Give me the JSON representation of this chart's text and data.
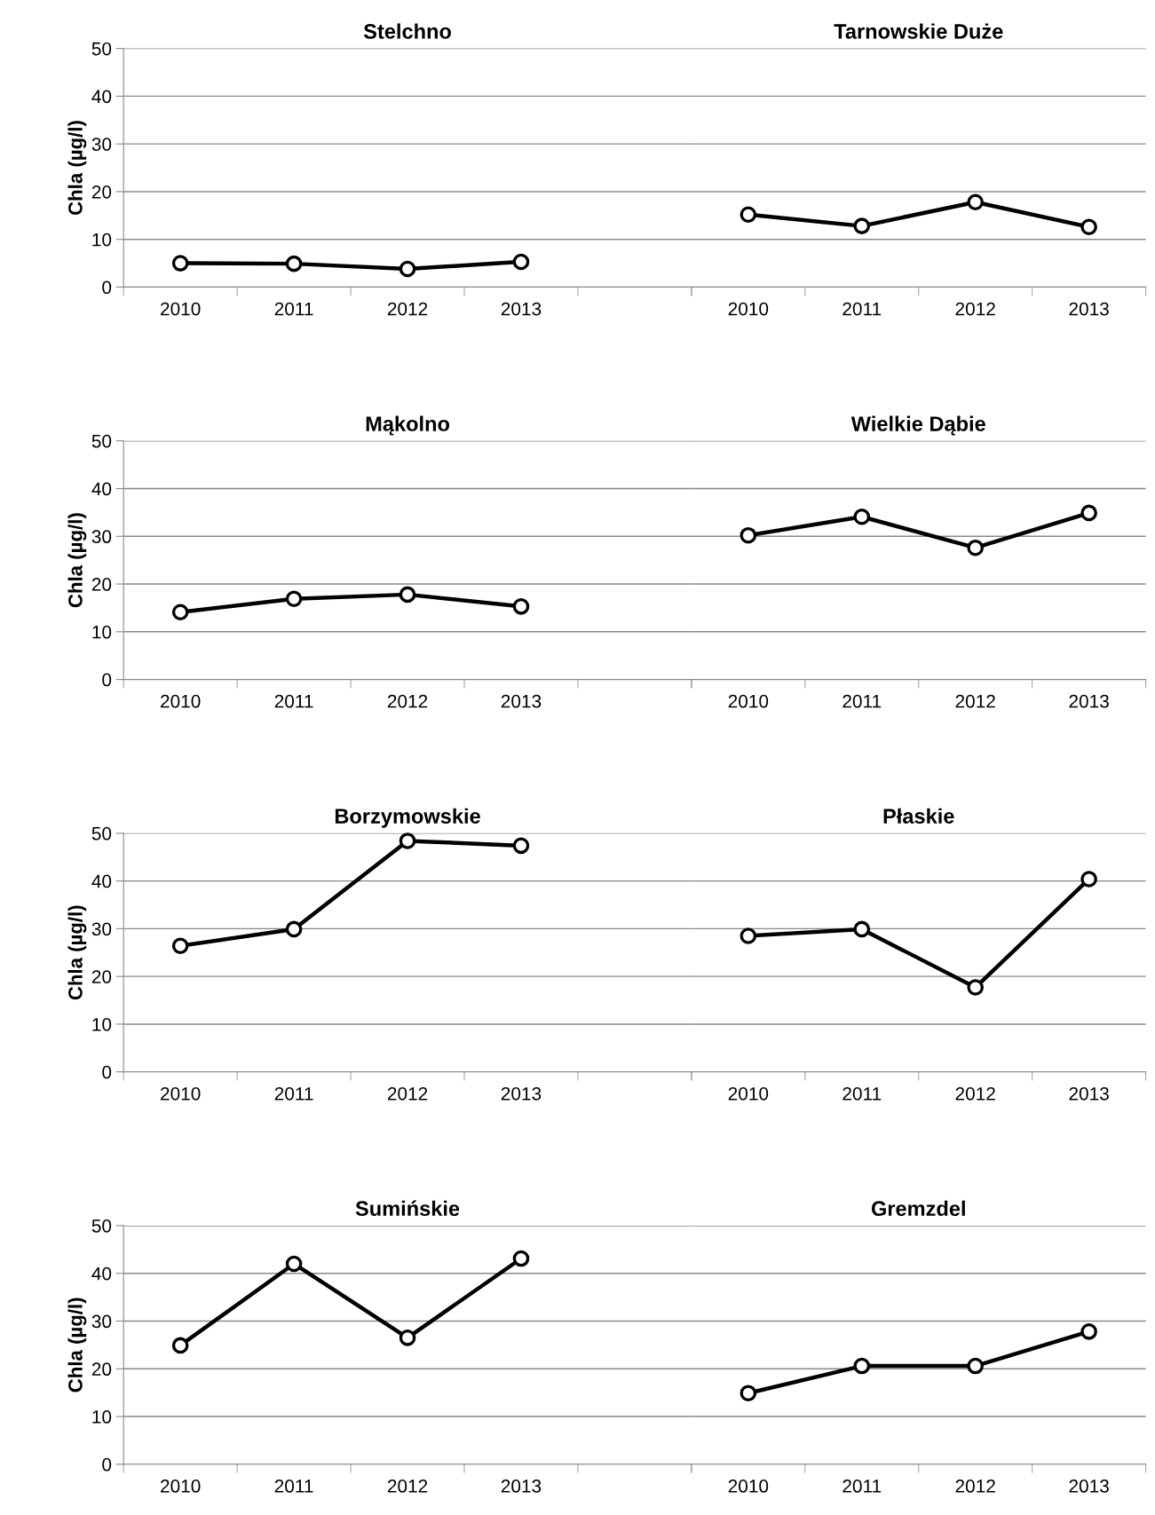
{
  "chart_data": [
    {
      "type": "line",
      "title": "Stelchno",
      "ylabel": "Chla (µg/l)",
      "categories": [
        "2010",
        "2011",
        "2012",
        "2013",
        null
      ],
      "ylim": [
        0,
        50
      ],
      "yticks": [
        0,
        10,
        20,
        30,
        40,
        50
      ],
      "grid": "y",
      "marker": "circle",
      "line_style": "solid",
      "series": [
        {
          "color": "#000000",
          "values": [
            5.0,
            4.9,
            3.8,
            5.3,
            null
          ]
        }
      ]
    },
    {
      "type": "line",
      "title": "Tarnowskie Duże",
      "categories": [
        "2010",
        "2011",
        "2012",
        "2013"
      ],
      "ylim": [
        0,
        50
      ],
      "yticks": [
        0,
        10,
        20,
        30,
        40,
        50
      ],
      "tick_labels": "x",
      "grid": "y",
      "marker": "circle",
      "line_style": "solid",
      "series": [
        {
          "color": "#000000",
          "values": [
            15.2,
            12.8,
            17.8,
            12.6
          ]
        }
      ]
    },
    {
      "type": "line",
      "title": "Mąkolno",
      "ylabel": "Chla (µg/l)",
      "categories": [
        "2010",
        "2011",
        "2012",
        "2013",
        null
      ],
      "ylim": [
        0,
        50
      ],
      "yticks": [
        0,
        10,
        20,
        30,
        40,
        50
      ],
      "grid": "y",
      "marker": "circle",
      "line_style": "solid",
      "series": [
        {
          "color": "#000000",
          "values": [
            14.1,
            16.9,
            17.8,
            15.3,
            null
          ]
        }
      ]
    },
    {
      "type": "line",
      "title": "Wielkie Dąbie",
      "categories": [
        "2010",
        "2011",
        "2012",
        "2013"
      ],
      "ylim": [
        0,
        50
      ],
      "yticks": [
        0,
        10,
        20,
        30,
        40,
        50
      ],
      "tick_labels": "x",
      "grid": "y",
      "marker": "circle",
      "line_style": "solid",
      "series": [
        {
          "color": "#000000",
          "values": [
            30.2,
            34.1,
            27.6,
            34.9
          ]
        }
      ]
    },
    {
      "type": "line",
      "title": "Borzymowskie",
      "ylabel": "Chla (µg/l)",
      "categories": [
        "2010",
        "2011",
        "2012",
        "2013",
        null
      ],
      "ylim": [
        0,
        50
      ],
      "yticks": [
        0,
        10,
        20,
        30,
        40,
        50
      ],
      "grid": "y",
      "marker": "circle",
      "line_style": "solid",
      "series": [
        {
          "color": "#000000",
          "values": [
            26.4,
            29.9,
            48.4,
            47.4,
            null
          ]
        }
      ]
    },
    {
      "type": "line",
      "title": "Płaskie",
      "categories": [
        "2010",
        "2011",
        "2012",
        "2013"
      ],
      "ylim": [
        0,
        50
      ],
      "yticks": [
        0,
        10,
        20,
        30,
        40,
        50
      ],
      "tick_labels": "x",
      "grid": "y",
      "marker": "circle",
      "line_style": "solid",
      "series": [
        {
          "color": "#000000",
          "values": [
            28.5,
            29.9,
            17.7,
            40.4
          ]
        }
      ]
    },
    {
      "type": "line",
      "title": "Sumińskie",
      "ylabel": "Chla (µg/l)",
      "categories": [
        "2010",
        "2011",
        "2012",
        "2013",
        null
      ],
      "ylim": [
        0,
        50
      ],
      "yticks": [
        0,
        10,
        20,
        30,
        40,
        50
      ],
      "grid": "y",
      "marker": "circle",
      "line_style": "solid",
      "series": [
        {
          "color": "#000000",
          "values": [
            24.9,
            42.0,
            26.5,
            43.1,
            null
          ]
        }
      ]
    },
    {
      "type": "line",
      "title": "Gremzdel",
      "categories": [
        "2010",
        "2011",
        "2012",
        "2013"
      ],
      "ylim": [
        0,
        50
      ],
      "yticks": [
        0,
        10,
        20,
        30,
        40,
        50
      ],
      "tick_labels": "x",
      "grid": "y",
      "marker": "circle",
      "line_style": "solid",
      "series": [
        {
          "color": "#000000",
          "values": [
            14.9,
            20.6,
            20.6,
            27.8
          ]
        }
      ]
    }
  ]
}
